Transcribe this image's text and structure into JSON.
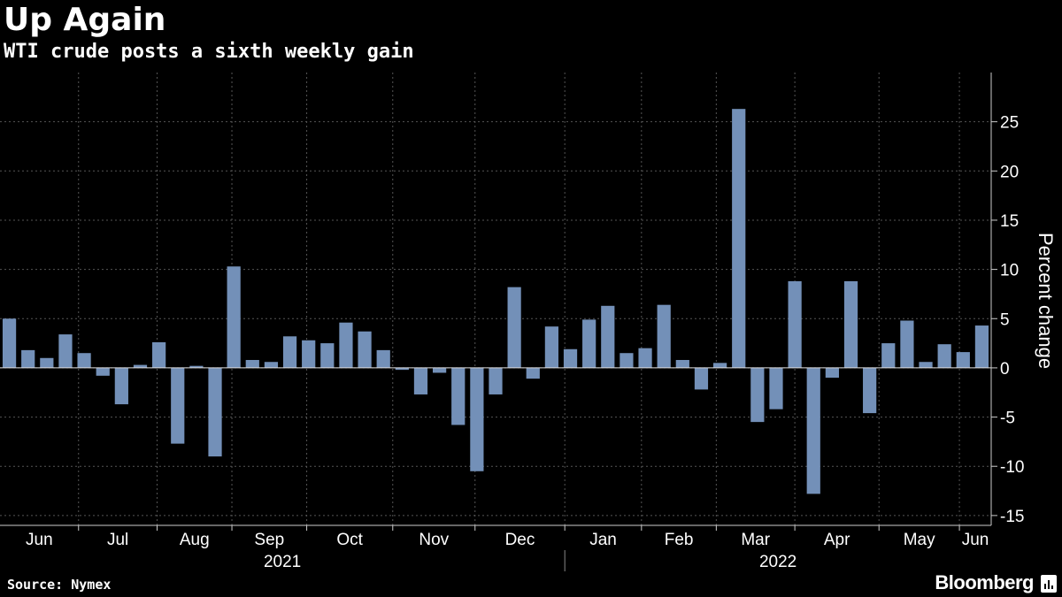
{
  "header": {
    "title": "Up Again",
    "subtitle": "WTI crude posts a sixth weekly gain"
  },
  "footer": {
    "source": "Source: Nymex",
    "brand": "Bloomberg"
  },
  "colors": {
    "background": "#000000",
    "bar": "#7390b8",
    "grid": "#555555",
    "text": "#ffffff"
  },
  "chart_data": {
    "type": "bar",
    "title": "Up Again",
    "subtitle": "WTI crude posts a sixth weekly gain",
    "ylabel": "Percent change",
    "ylim": [
      -16,
      30
    ],
    "yticks": [
      -15,
      -10,
      -5,
      0,
      5,
      10,
      15,
      20,
      25
    ],
    "grid": true,
    "month_labels": [
      "Jun",
      "Jul",
      "Aug",
      "Sep",
      "Oct",
      "Nov",
      "Dec",
      "Jan",
      "Feb",
      "Mar",
      "Apr",
      "May",
      "Jun"
    ],
    "year_labels": [
      "2021",
      "2022"
    ],
    "series": [
      {
        "values": [
          5.0,
          1.8,
          1.0,
          3.4,
          1.5,
          -0.8,
          -3.7,
          0.3,
          2.6,
          -7.7,
          0.2,
          -9.0,
          10.3,
          0.8,
          0.6,
          3.2,
          2.8,
          2.5,
          4.6,
          3.7,
          1.8,
          -0.2,
          -2.7,
          -0.5,
          -5.8,
          -10.5,
          -2.7,
          8.2,
          -1.1,
          4.2,
          1.9,
          4.9,
          6.3,
          1.5,
          2.0,
          6.4,
          0.8,
          -2.2,
          0.5,
          26.3,
          -5.5,
          -4.2,
          8.8,
          -12.8,
          -1.0,
          8.8,
          -4.6,
          2.5,
          4.8,
          0.6,
          2.4,
          1.6,
          4.3
        ]
      }
    ]
  }
}
